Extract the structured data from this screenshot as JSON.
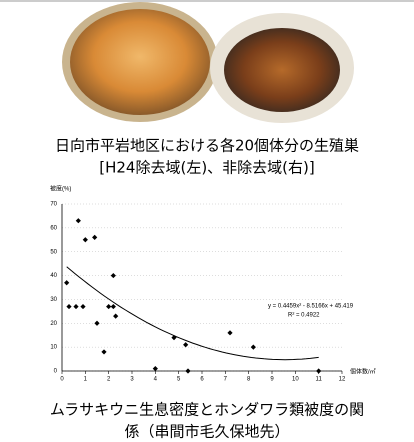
{
  "photo_caption": [
    "日向市平岩地区における各20個体分の生殖巣",
    "[H24除去域(左)、非除去域(右)]"
  ],
  "chart_data": {
    "type": "scatter",
    "y_label": "被度(%)",
    "x_label": "個体数/㎡",
    "x": [
      0.2,
      0.3,
      0.6,
      0.9,
      0.7,
      1.0,
      1.4,
      2.2,
      2.0,
      2.2,
      1.5,
      2.3,
      1.8,
      4.0,
      4.8,
      5.3,
      5.4,
      7.2,
      8.2,
      11.0
    ],
    "values": [
      37,
      27,
      27,
      27,
      63,
      55,
      56,
      40,
      27,
      27,
      20,
      23,
      8,
      1,
      14,
      11,
      0,
      16,
      10,
      0
    ],
    "color": "#000000",
    "trend_coefficients": [
      0.4459,
      -8.5166,
      45.419
    ],
    "equation": "y = 0.4459x² - 8.5166x + 45.419",
    "r_squared": "R² = 0.4922",
    "xlim": [
      0,
      12
    ],
    "xticks": [
      0,
      1,
      2,
      3,
      4,
      5,
      6,
      7,
      8,
      9,
      10,
      11,
      12
    ],
    "ylim": [
      0,
      70
    ],
    "yticks": [
      0,
      10,
      20,
      30,
      40,
      50,
      60,
      70
    ],
    "grid": true
  },
  "chart_caption": [
    "ムラサキウニ生息密度とホンダワラ類被度の関",
    "係（串間市毛久保地先）"
  ]
}
